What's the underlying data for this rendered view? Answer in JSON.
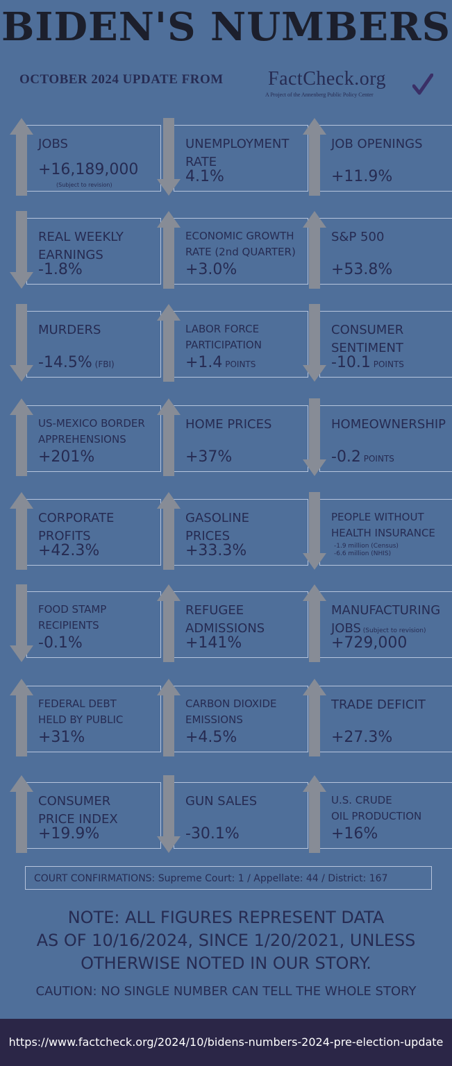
{
  "header": {
    "title": "BIDEN'S NUMBERS",
    "subtitle": "OCTOBER 2024 UPDATE FROM",
    "logo_main": "FactCheck.org",
    "logo_sub": "A Project of the Annenberg Public Policy Center"
  },
  "colors": {
    "background": "#4f6f9a",
    "text": "#262b52",
    "arrow": "#878c96",
    "footer": "#2b2647"
  },
  "stats": [
    {
      "label": "JOBS",
      "value": "+16,189,000",
      "note": "(Subject to revision)",
      "direction": "up"
    },
    {
      "label": "UNEMPLOYMENT\nRATE",
      "value": "4.1%",
      "direction": "down"
    },
    {
      "label": "JOB OPENINGS",
      "value": "+11.9%",
      "direction": "up"
    },
    {
      "label": "REAL WEEKLY\nEARNINGS",
      "value": "-1.8%",
      "direction": "down"
    },
    {
      "label": "ECONOMIC GROWTH\nRATE (2nd QUARTER)",
      "value": "+3.0%",
      "direction": "up"
    },
    {
      "label": "S&P 500",
      "value": "+53.8%",
      "direction": "up"
    },
    {
      "label": "MURDERS",
      "value": "-14.5%",
      "suffix": "(FBI)",
      "direction": "down"
    },
    {
      "label": "LABOR FORCE\nPARTICIPATION",
      "value": "+1.4",
      "suffix": "POINTS",
      "direction": "up"
    },
    {
      "label": "CONSUMER\nSENTIMENT",
      "value": "-10.1",
      "suffix": "POINTS",
      "direction": "down"
    },
    {
      "label": "US-MEXICO BORDER\nAPPREHENSIONS",
      "value": "+201%",
      "direction": "up"
    },
    {
      "label": "HOME PRICES",
      "value": "+37%",
      "direction": "up"
    },
    {
      "label": "HOMEOWNERSHIP",
      "value": "-0.2",
      "suffix": "POINTS",
      "direction": "down"
    },
    {
      "label": "CORPORATE\nPROFITS",
      "value": "+42.3%",
      "direction": "up"
    },
    {
      "label": "GASOLINE\nPRICES",
      "value": "+33.3%",
      "direction": "up"
    },
    {
      "label": "PEOPLE WITHOUT\nHEALTH INSURANCE",
      "value": "",
      "sub1": "-1.9 million (Census)",
      "sub2": "-6.6 million (NHIS)",
      "direction": "down"
    },
    {
      "label": "FOOD STAMP\nRECIPIENTS",
      "value": "-0.1%",
      "direction": "down"
    },
    {
      "label": "REFUGEE\nADMISSIONS",
      "value": "+141%",
      "direction": "up"
    },
    {
      "label": "MANUFACTURING\nJOBS",
      "label_note": "(Subject to revision)",
      "value": "+729,000",
      "direction": "up"
    },
    {
      "label": "FEDERAL DEBT\nHELD BY PUBLIC",
      "value": "+31%",
      "direction": "up"
    },
    {
      "label": "CARBON DIOXIDE\nEMISSIONS",
      "value": "+4.5%",
      "direction": "up"
    },
    {
      "label": "TRADE DEFICIT",
      "value": "+27.3%",
      "direction": "up"
    },
    {
      "label": "CONSUMER\nPRICE INDEX",
      "value": "+19.9%",
      "direction": "up"
    },
    {
      "label": "GUN SALES",
      "value": "-30.1%",
      "direction": "down"
    },
    {
      "label": "U.S. CRUDE\nOIL PRODUCTION",
      "value": "+16%",
      "direction": "up"
    }
  ],
  "court": "COURT CONFIRMATIONS:  Supreme Court: 1 / Appellate: 44 / District: 167",
  "note": [
    "NOTE:  ALL FIGURES REPRESENT DATA",
    "AS OF 10/16/2024, SINCE 1/20/2021, UNLESS",
    "OTHERWISE NOTED IN OUR STORY."
  ],
  "caution": "CAUTION: NO SINGLE NUMBER CAN TELL THE WHOLE STORY",
  "footer_url": "https://www.factcheck.org/2024/10/bidens-numbers-2024-pre-election-update"
}
